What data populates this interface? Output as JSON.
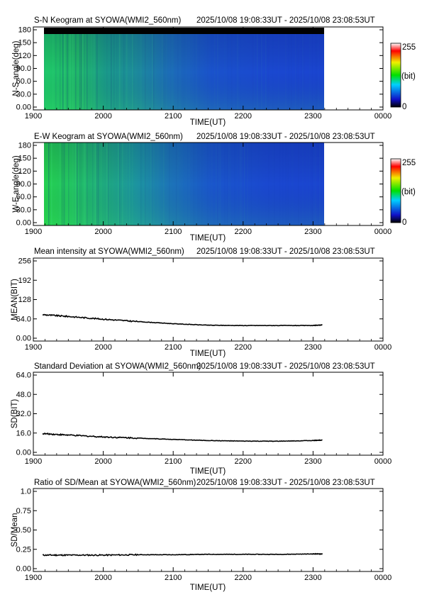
{
  "panels": [
    {
      "kind": "keogram",
      "title": "S-N Keogram at SYOWA(WMI2_560nm)",
      "time_range": "2025/10/08 19:08:33UT - 2025/10/08 23:08:53UT",
      "ylabel": "N-S angle(deg)",
      "xlabel": "TIME(UT)",
      "yticks": [
        "0.00",
        "30.0",
        "60.0",
        "90.0",
        "120",
        "150",
        "180"
      ],
      "xticks": [
        "1900",
        "2000",
        "2100",
        "2200",
        "2300",
        "0000"
      ],
      "colorbar": {
        "max_label": "255",
        "unit_label": "(bit)",
        "min_label": "0"
      }
    },
    {
      "kind": "keogram",
      "title": "E-W Keogram at SYOWA(WMI2_560nm)",
      "time_range": "2025/10/08 19:08:33UT - 2025/10/08 23:08:53UT",
      "ylabel": "W-E angle(deg)",
      "xlabel": "TIME(UT)",
      "yticks": [
        "0.00",
        "30.0",
        "60.0",
        "90.0",
        "120",
        "150",
        "180"
      ],
      "xticks": [
        "1900",
        "2000",
        "2100",
        "2200",
        "2300",
        "0000"
      ],
      "colorbar": {
        "max_label": "255",
        "unit_label": "(bit)",
        "min_label": "0"
      }
    },
    {
      "kind": "line",
      "title": "Mean intensity at SYOWA(WMI2_560nm)",
      "time_range": "2025/10/08 19:08:33UT - 2025/10/08 23:08:53UT",
      "ylabel": "MEAN(BIT)",
      "xlabel": "TIME(UT)",
      "yticks": [
        "0.00",
        "64.0",
        "128",
        "192",
        "256"
      ],
      "xticks": [
        "1900",
        "2000",
        "2100",
        "2200",
        "2300",
        "0000"
      ]
    },
    {
      "kind": "line",
      "title": "Standard Deviation at SYOWA(WMI2_560nm)",
      "time_range": "2025/10/08 19:08:33UT - 2025/10/08 23:08:53UT",
      "ylabel": "SD(BIT)",
      "xlabel": "TIME(UT)",
      "yticks": [
        "0.00",
        "16.0",
        "32.0",
        "48.0",
        "64.0"
      ],
      "xticks": [
        "1900",
        "2000",
        "2100",
        "2200",
        "2300",
        "0000"
      ]
    },
    {
      "kind": "line",
      "title": "Ratio of SD/Mean at SYOWA(WMI2_560nm)",
      "time_range": "2025/10/08 19:08:33UT - 2025/10/08 23:08:53UT",
      "ylabel": "SD/Mean",
      "xlabel": "TIME(UT)",
      "yticks": [
        "0.00",
        "0.25",
        "0.50",
        "0.75",
        "1.0"
      ],
      "xticks": [
        "1900",
        "2000",
        "2100",
        "2200",
        "2300",
        "0000"
      ]
    }
  ],
  "chart_data": [
    {
      "type": "heatmap",
      "title": "S-N Keogram at SYOWA(WMI2_560nm)",
      "xlabel": "TIME(UT)",
      "ylabel": "N-S angle(deg)",
      "xlim": [
        "19:00",
        "24:00"
      ],
      "ylim": [
        0,
        180
      ],
      "data_time_range": [
        "19:08:33",
        "23:08:53"
      ],
      "no_data_rows_deg": [
        167,
        180
      ],
      "colorbar_range": [
        0,
        255
      ],
      "colormap": "rainbow (black-blue-green-yellow-red-white)",
      "intensity_profile": {
        "time_hhmm": [
          1908,
          1930,
          2000,
          2030,
          2100,
          2130,
          2200,
          2300
        ],
        "value_bit": [
          90,
          85,
          75,
          60,
          45,
          38,
          35,
          33
        ]
      }
    },
    {
      "type": "heatmap",
      "title": "E-W Keogram at SYOWA(WMI2_560nm)",
      "xlabel": "TIME(UT)",
      "ylabel": "W-E angle(deg)",
      "xlim": [
        "19:00",
        "24:00"
      ],
      "ylim": [
        0,
        180
      ],
      "data_time_range": [
        "19:08:33",
        "23:08:53"
      ],
      "colorbar_range": [
        0,
        255
      ],
      "colormap": "rainbow (black-blue-green-yellow-red-white)",
      "intensity_profile": {
        "time_hhmm": [
          1908,
          1930,
          2000,
          2030,
          2100,
          2130,
          2200,
          2300
        ],
        "value_bit": [
          95,
          88,
          78,
          62,
          46,
          38,
          35,
          33
        ]
      }
    },
    {
      "type": "line",
      "title": "Mean intensity at SYOWA(WMI2_560nm)",
      "xlabel": "TIME(UT)",
      "ylabel": "MEAN(BIT)",
      "ylim": [
        0,
        256
      ],
      "xlim": [
        "19:00",
        "24:00"
      ],
      "series": [
        {
          "x": [
            "19:08",
            "19:30",
            "20:00",
            "20:30",
            "21:00",
            "21:30",
            "22:00",
            "22:30",
            "23:00",
            "23:08"
          ],
          "y": [
            78,
            72,
            63,
            55,
            48,
            43,
            42,
            42,
            42,
            44
          ]
        }
      ]
    },
    {
      "type": "line",
      "title": "Standard Deviation at SYOWA(WMI2_560nm)",
      "xlabel": "TIME(UT)",
      "ylabel": "SD(BIT)",
      "ylim": [
        0,
        64
      ],
      "xlim": [
        "19:00",
        "24:00"
      ],
      "series": [
        {
          "x": [
            "19:08",
            "19:30",
            "20:00",
            "20:30",
            "21:00",
            "21:30",
            "22:00",
            "22:30",
            "23:00",
            "23:08"
          ],
          "y": [
            15.5,
            14.3,
            12.8,
            11.8,
            10.7,
            9.8,
            9.3,
            9.2,
            9.8,
            10.2
          ]
        }
      ]
    },
    {
      "type": "line",
      "title": "Ratio of SD/Mean at SYOWA(WMI2_560nm)",
      "xlabel": "TIME(UT)",
      "ylabel": "SD/Mean",
      "ylim": [
        0,
        1.0
      ],
      "xlim": [
        "19:00",
        "24:00"
      ],
      "series": [
        {
          "x": [
            "19:08",
            "19:30",
            "20:00",
            "20:30",
            "21:00",
            "21:30",
            "22:00",
            "22:30",
            "23:00",
            "23:08"
          ],
          "y": [
            0.175,
            0.175,
            0.175,
            0.18,
            0.18,
            0.185,
            0.185,
            0.185,
            0.19,
            0.19
          ]
        }
      ]
    }
  ]
}
